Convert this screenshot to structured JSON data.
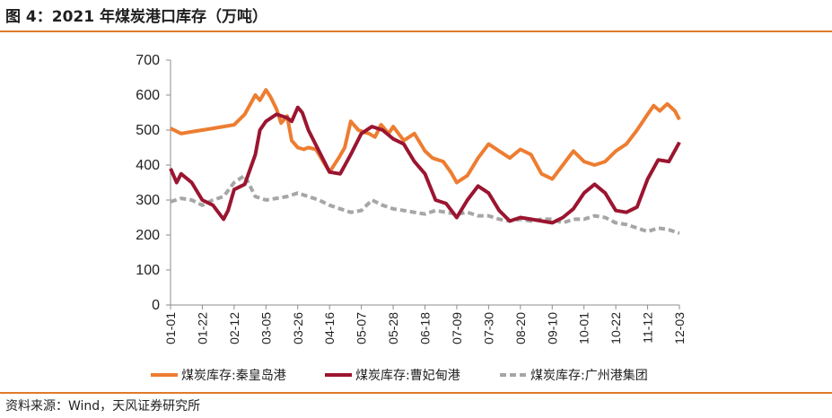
{
  "figure": {
    "title": "图 4：2021 年煤炭港口库存（万吨）",
    "source": "资料来源：Wind，天风证券研究所"
  },
  "colors": {
    "accent_rule": "#e07b2a",
    "qinhuangdao": "#ed7d31",
    "caofeidian": "#9b1530",
    "guangzhou": "#a6a6a6"
  },
  "chart_data": {
    "type": "line",
    "title": "",
    "xlabel": "",
    "ylabel": "",
    "ylim": [
      0,
      700
    ],
    "yticks": [
      0,
      100,
      200,
      300,
      400,
      500,
      600,
      700
    ],
    "xticks": [
      "01-01",
      "01-22",
      "02-12",
      "03-05",
      "03-26",
      "04-16",
      "05-07",
      "05-28",
      "06-18",
      "07-09",
      "07-30",
      "08-20",
      "09-10",
      "10-01",
      "10-22",
      "11-12",
      "12-03"
    ],
    "xrange": [
      "01-01",
      "12-03"
    ],
    "grid": false,
    "legend_position": "bottom",
    "series": [
      {
        "name": "煤炭库存:秦皇岛港",
        "style": "solid",
        "color": "#ed7d31",
        "x": [
          "01-01",
          "01-08",
          "01-15",
          "01-22",
          "01-29",
          "02-05",
          "02-12",
          "02-19",
          "02-26",
          "03-01",
          "03-05",
          "03-08",
          "03-12",
          "03-15",
          "03-19",
          "03-22",
          "03-26",
          "03-30",
          "04-02",
          "04-07",
          "04-16",
          "04-22",
          "04-26",
          "04-30",
          "05-05",
          "05-08",
          "05-12",
          "05-16",
          "05-20",
          "05-25",
          "05-28",
          "06-04",
          "06-11",
          "06-18",
          "06-23",
          "06-30",
          "07-05",
          "07-09",
          "07-16",
          "07-23",
          "07-30",
          "08-06",
          "08-13",
          "08-20",
          "08-27",
          "09-03",
          "09-10",
          "09-17",
          "09-24",
          "10-01",
          "10-08",
          "10-15",
          "10-22",
          "10-29",
          "11-05",
          "11-12",
          "11-16",
          "11-20",
          "11-25",
          "11-30",
          "12-03"
        ],
        "values": [
          505,
          490,
          495,
          500,
          505,
          510,
          515,
          545,
          600,
          585,
          615,
          595,
          560,
          520,
          540,
          470,
          450,
          445,
          450,
          445,
          380,
          420,
          450,
          525,
          500,
          495,
          490,
          480,
          515,
          490,
          510,
          470,
          490,
          440,
          420,
          410,
          380,
          350,
          370,
          420,
          460,
          440,
          420,
          445,
          430,
          375,
          360,
          400,
          440,
          410,
          400,
          410,
          440,
          460,
          500,
          545,
          570,
          555,
          575,
          555,
          530
        ]
      },
      {
        "name": "煤炭库存:曹妃甸港",
        "style": "solid",
        "color": "#9b1530",
        "x": [
          "01-01",
          "01-05",
          "01-08",
          "01-15",
          "01-22",
          "01-29",
          "02-05",
          "02-08",
          "02-12",
          "02-19",
          "02-26",
          "03-01",
          "03-05",
          "03-12",
          "03-19",
          "03-22",
          "03-26",
          "03-29",
          "04-02",
          "04-09",
          "04-16",
          "04-23",
          "04-30",
          "05-07",
          "05-14",
          "05-21",
          "05-28",
          "06-04",
          "06-11",
          "06-18",
          "06-25",
          "07-02",
          "07-09",
          "07-16",
          "07-23",
          "07-30",
          "08-06",
          "08-13",
          "08-20",
          "08-27",
          "09-03",
          "09-10",
          "09-17",
          "09-24",
          "10-01",
          "10-08",
          "10-15",
          "10-22",
          "10-29",
          "11-05",
          "11-12",
          "11-19",
          "11-26",
          "12-03"
        ],
        "values": [
          390,
          350,
          375,
          350,
          300,
          285,
          245,
          270,
          330,
          345,
          430,
          500,
          525,
          545,
          535,
          525,
          565,
          550,
          500,
          440,
          380,
          375,
          430,
          490,
          510,
          500,
          475,
          460,
          410,
          375,
          300,
          290,
          250,
          300,
          340,
          320,
          270,
          240,
          250,
          245,
          240,
          235,
          250,
          275,
          320,
          345,
          320,
          270,
          265,
          280,
          360,
          415,
          410,
          465
        ]
      },
      {
        "name": "煤炭库存:广州港集团",
        "style": "dashed",
        "color": "#a6a6a6",
        "x": [
          "01-01",
          "01-08",
          "01-15",
          "01-22",
          "01-29",
          "02-05",
          "02-12",
          "02-19",
          "02-26",
          "03-05",
          "03-12",
          "03-19",
          "03-26",
          "04-02",
          "04-09",
          "04-16",
          "04-23",
          "04-30",
          "05-07",
          "05-14",
          "05-21",
          "05-28",
          "06-04",
          "06-11",
          "06-18",
          "06-25",
          "07-02",
          "07-09",
          "07-16",
          "07-23",
          "07-30",
          "08-06",
          "08-13",
          "08-20",
          "08-27",
          "09-03",
          "09-10",
          "09-17",
          "09-24",
          "10-01",
          "10-08",
          "10-15",
          "10-22",
          "10-29",
          "11-05",
          "11-12",
          "11-19",
          "11-26",
          "12-03"
        ],
        "values": [
          295,
          305,
          300,
          285,
          300,
          310,
          350,
          370,
          310,
          300,
          305,
          310,
          320,
          310,
          300,
          285,
          275,
          265,
          270,
          300,
          285,
          275,
          270,
          265,
          260,
          270,
          265,
          260,
          265,
          255,
          255,
          245,
          240,
          245,
          240,
          245,
          245,
          235,
          245,
          245,
          255,
          250,
          235,
          230,
          220,
          210,
          220,
          215,
          205
        ]
      }
    ]
  }
}
